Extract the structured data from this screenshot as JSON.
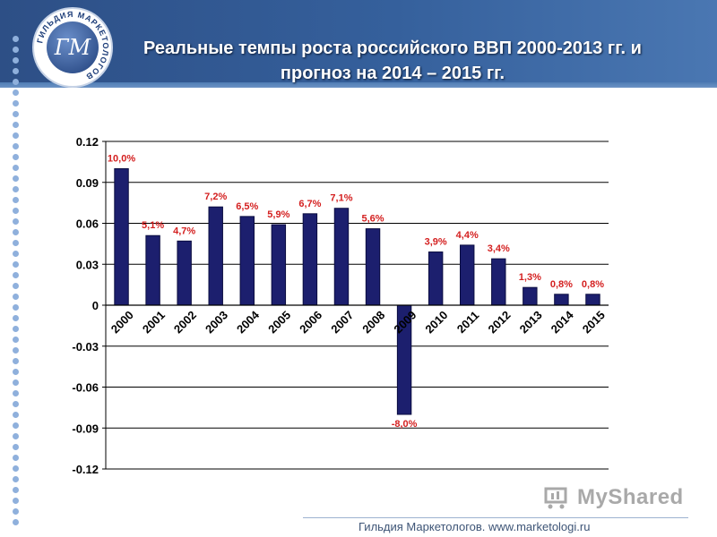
{
  "title": "Реальные темпы роста российского ВВП 2000-2013 гг. и прогноз на 2014 – 2015 гг.",
  "logo": {
    "text": "ГИЛЬДИЯ МАРКЕТОЛОГОВ",
    "monogram": "ГМ"
  },
  "watermark": "MyShared",
  "footer": "Гильдия Маркетологов. www.marketologi.ru",
  "colors": {
    "header": "#2d4f86",
    "bar": "#1c1f6e",
    "label": "#d42020",
    "accent_dots": "#8fb0dc"
  },
  "chart_data": {
    "type": "bar",
    "title": "",
    "xlabel": "",
    "ylabel": "",
    "categories": [
      "2000",
      "2001",
      "2002",
      "2003",
      "2004",
      "2005",
      "2006",
      "2007",
      "2008",
      "2009",
      "2010",
      "2011",
      "2012",
      "2013",
      "2014",
      "2015"
    ],
    "values": [
      0.1,
      0.051,
      0.047,
      0.072,
      0.065,
      0.059,
      0.067,
      0.071,
      0.056,
      -0.08,
      0.039,
      0.044,
      0.034,
      0.013,
      0.008,
      0.008
    ],
    "data_labels": [
      "10,0%",
      "5,1%",
      "4,7%",
      "7,2%",
      "6,5%",
      "5,9%",
      "6,7%",
      "7,1%",
      "5,6%",
      "-8,0%",
      "3,9%",
      "4,4%",
      "3,4%",
      "1,3%",
      "0,8%",
      "0,8%"
    ],
    "yticks": [
      "0.12",
      "0.09",
      "0.06",
      "0.03",
      "0",
      "-0.03",
      "-0.06",
      "-0.09",
      "-0.12"
    ],
    "ylim": [
      -0.12,
      0.12
    ],
    "grid": true,
    "legend": "none"
  }
}
